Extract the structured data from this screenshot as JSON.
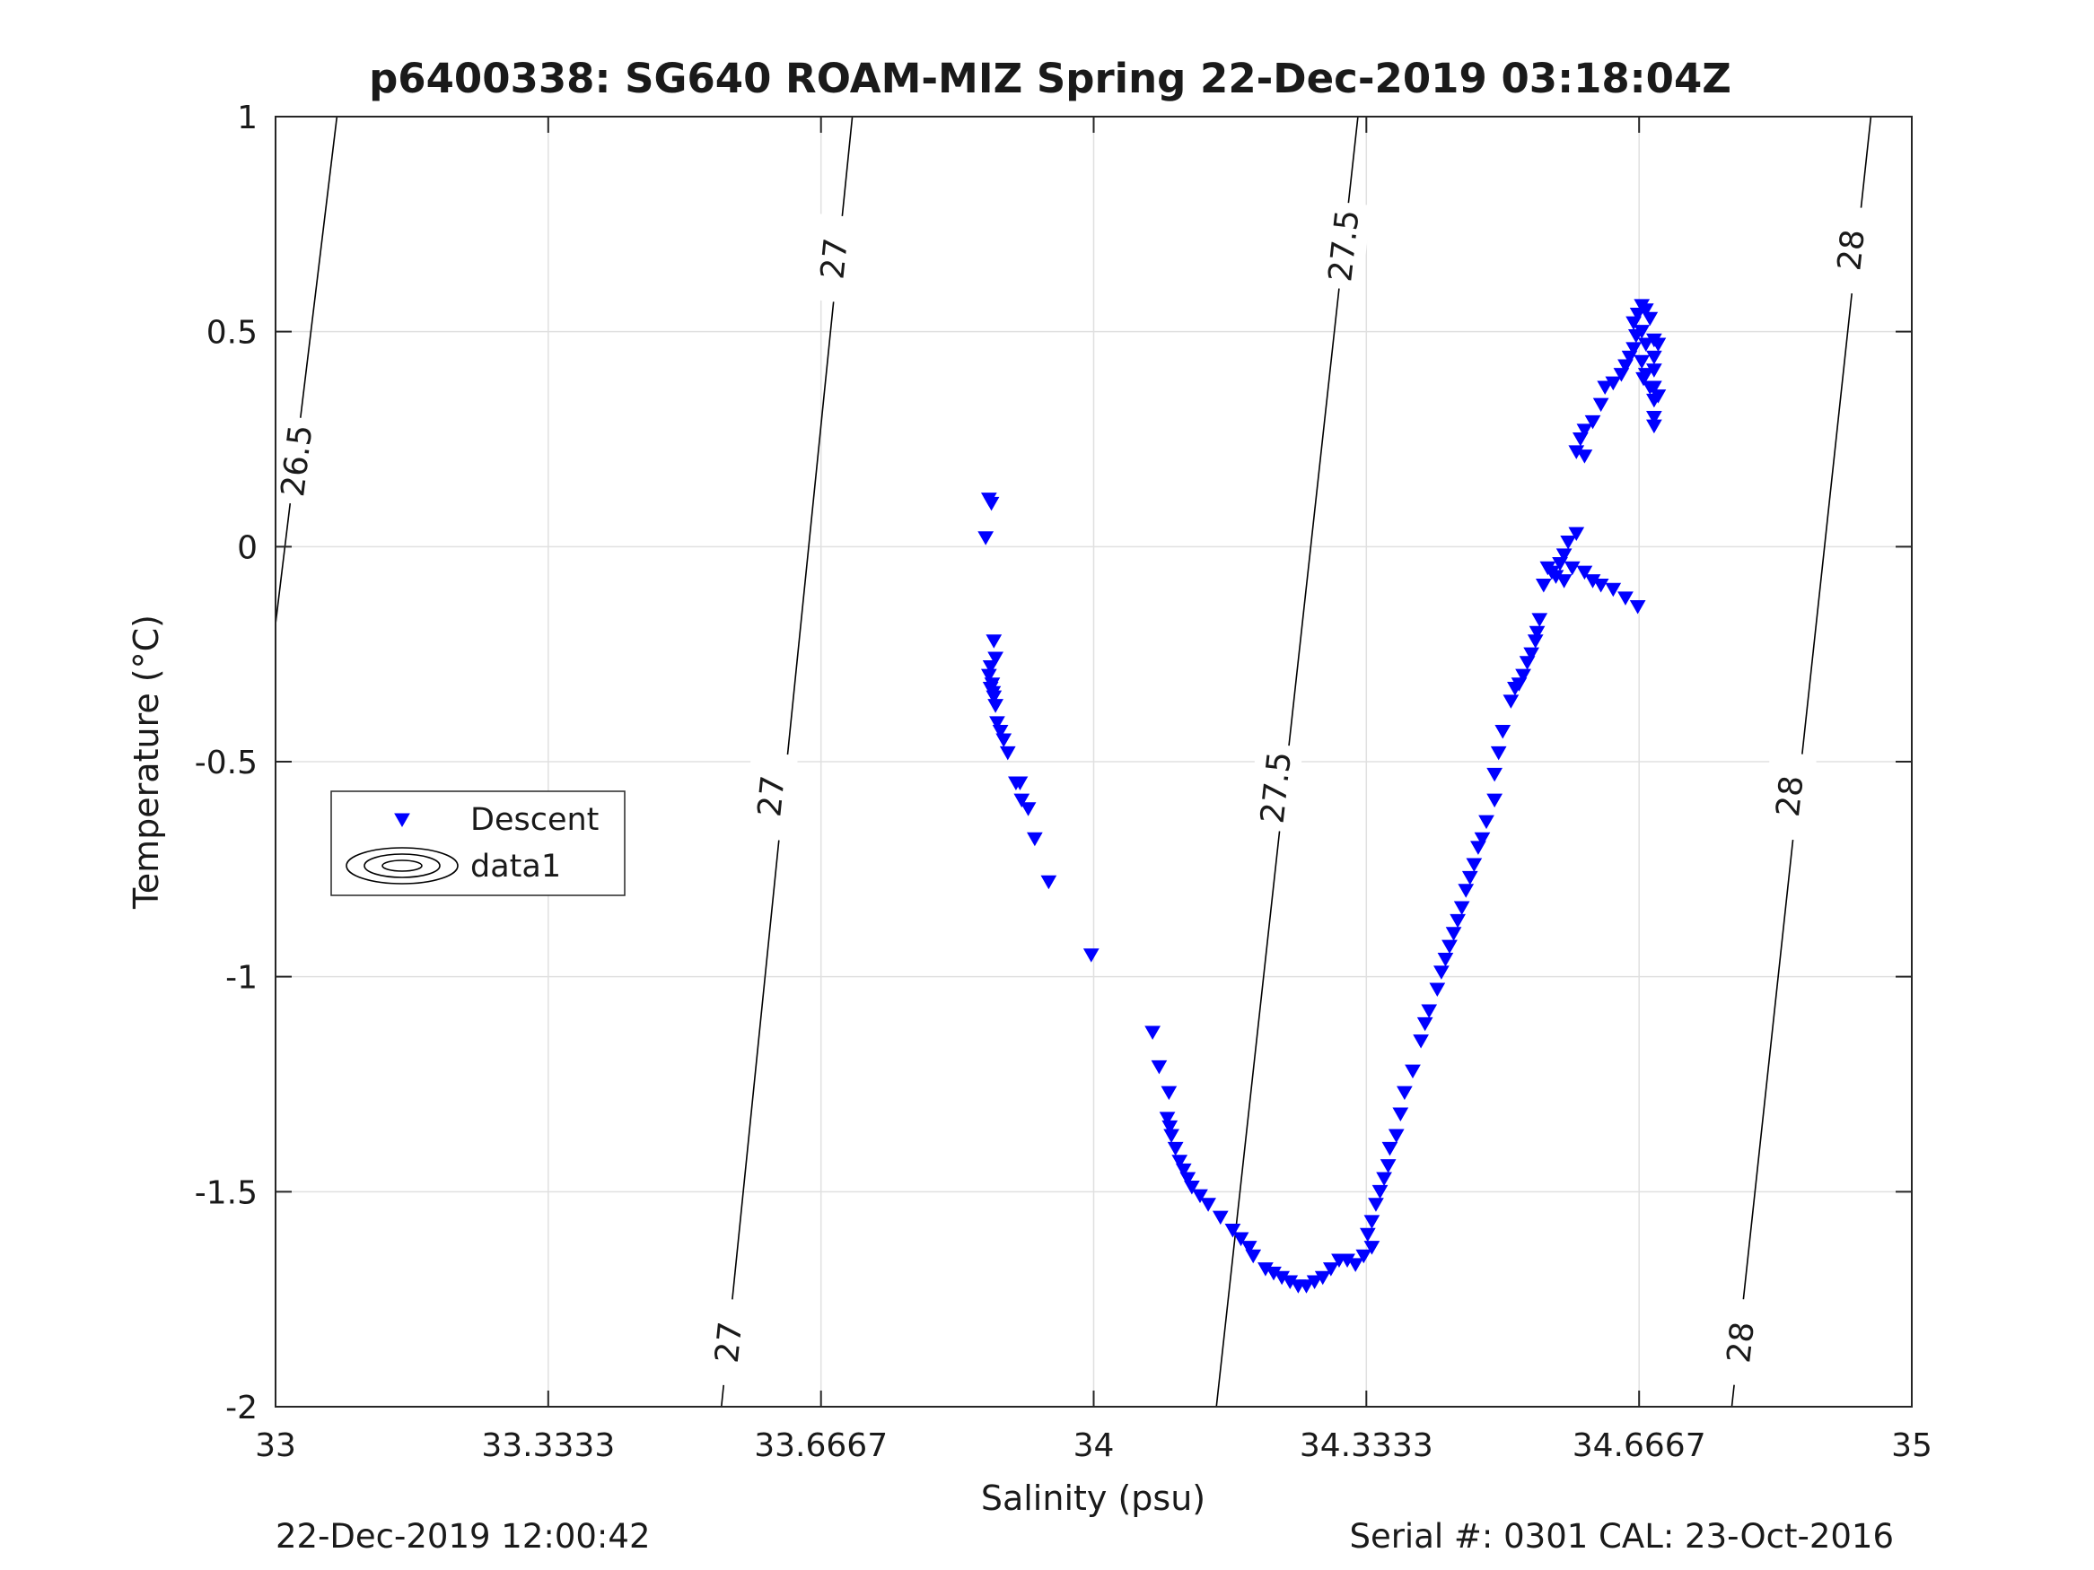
{
  "chart_data": {
    "type": "scatter",
    "title": "p6400338: SG640 ROAM-MIZ Spring 22-Dec-2019 03:18:04Z",
    "xlabel": "Salinity (psu)",
    "ylabel": "Temperature (°C)",
    "xlim": [
      33,
      35
    ],
    "ylim": [
      -2,
      1
    ],
    "xticks": [
      33,
      33.3333,
      33.6667,
      34,
      34.3333,
      34.6667,
      35
    ],
    "xtick_labels": [
      "33",
      "33.3333",
      "33.6667",
      "34",
      "34.3333",
      "34.6667",
      "35"
    ],
    "yticks": [
      -2,
      -1.5,
      -1,
      -0.5,
      0,
      0.5,
      1
    ],
    "ytick_labels": [
      "-2",
      "-1.5",
      "-1",
      "-0.5",
      "0",
      "0.5",
      "1"
    ],
    "grid": true,
    "legend": {
      "position": "left-middle",
      "entries": [
        "Descent",
        "data1"
      ]
    },
    "contours": [
      {
        "level": "26.5",
        "points": [
          [
            33,
            -0.18
          ],
          [
            33.075,
            1
          ]
        ],
        "labels": [
          [
            33.025,
            0.2
          ]
        ]
      },
      {
        "level": "27",
        "points": [
          [
            33.545,
            -2
          ],
          [
            33.705,
            1
          ]
        ],
        "labels": [
          [
            33.553,
            -1.85
          ],
          [
            33.605,
            -0.58
          ],
          [
            33.682,
            0.67
          ]
        ]
      },
      {
        "level": "27.5",
        "points": [
          [
            34.15,
            -2
          ],
          [
            34.323,
            1
          ]
        ],
        "labels": [
          [
            34.222,
            -0.56
          ],
          [
            34.305,
            0.7
          ]
        ]
      },
      {
        "level": "28",
        "points": [
          [
            34.78,
            -2
          ],
          [
            34.95,
            1
          ]
        ],
        "labels": [
          [
            34.79,
            -1.85
          ],
          [
            34.85,
            -0.58
          ],
          [
            34.925,
            0.69
          ]
        ]
      }
    ],
    "series": [
      {
        "name": "Descent",
        "color": "#0000ff",
        "marker": "triangle-down",
        "points": [
          [
            33.872,
            0.11
          ],
          [
            33.875,
            0.1
          ],
          [
            33.868,
            0.02
          ],
          [
            33.878,
            -0.22
          ],
          [
            33.88,
            -0.26
          ],
          [
            33.874,
            -0.28
          ],
          [
            33.872,
            -0.3
          ],
          [
            33.876,
            -0.32
          ],
          [
            33.874,
            -0.33
          ],
          [
            33.878,
            -0.35
          ],
          [
            33.88,
            -0.37
          ],
          [
            33.877,
            -0.34
          ],
          [
            33.882,
            -0.41
          ],
          [
            33.886,
            -0.43
          ],
          [
            33.89,
            -0.45
          ],
          [
            33.895,
            -0.48
          ],
          [
            33.905,
            -0.55
          ],
          [
            33.91,
            -0.55
          ],
          [
            33.912,
            -0.59
          ],
          [
            33.92,
            -0.61
          ],
          [
            33.928,
            -0.68
          ],
          [
            33.945,
            -0.78
          ],
          [
            33.997,
            -0.95
          ],
          [
            34.072,
            -1.13
          ],
          [
            34.08,
            -1.21
          ],
          [
            34.092,
            -1.27
          ],
          [
            34.09,
            -1.33
          ],
          [
            34.093,
            -1.35
          ],
          [
            34.095,
            -1.37
          ],
          [
            34.1,
            -1.4
          ],
          [
            34.105,
            -1.43
          ],
          [
            34.11,
            -1.45
          ],
          [
            34.115,
            -1.47
          ],
          [
            34.12,
            -1.49
          ],
          [
            34.13,
            -1.51
          ],
          [
            34.14,
            -1.53
          ],
          [
            34.155,
            -1.56
          ],
          [
            34.17,
            -1.59
          ],
          [
            34.18,
            -1.61
          ],
          [
            34.19,
            -1.63
          ],
          [
            34.195,
            -1.65
          ],
          [
            34.21,
            -1.68
          ],
          [
            34.22,
            -1.69
          ],
          [
            34.23,
            -1.7
          ],
          [
            34.24,
            -1.71
          ],
          [
            34.25,
            -1.72
          ],
          [
            34.26,
            -1.72
          ],
          [
            34.27,
            -1.71
          ],
          [
            34.28,
            -1.7
          ],
          [
            34.29,
            -1.68
          ],
          [
            34.3,
            -1.66
          ],
          [
            34.31,
            -1.66
          ],
          [
            34.32,
            -1.67
          ],
          [
            34.33,
            -1.65
          ],
          [
            34.34,
            -1.63
          ],
          [
            34.335,
            -1.6
          ],
          [
            34.34,
            -1.57
          ],
          [
            34.345,
            -1.53
          ],
          [
            34.35,
            -1.5
          ],
          [
            34.355,
            -1.47
          ],
          [
            34.36,
            -1.44
          ],
          [
            34.362,
            -1.4
          ],
          [
            34.37,
            -1.37
          ],
          [
            34.375,
            -1.32
          ],
          [
            34.38,
            -1.27
          ],
          [
            34.39,
            -1.22
          ],
          [
            34.4,
            -1.15
          ],
          [
            34.405,
            -1.11
          ],
          [
            34.41,
            -1.08
          ],
          [
            34.42,
            -1.03
          ],
          [
            34.425,
            -0.99
          ],
          [
            34.43,
            -0.96
          ],
          [
            34.435,
            -0.93
          ],
          [
            34.44,
            -0.9
          ],
          [
            34.445,
            -0.87
          ],
          [
            34.45,
            -0.84
          ],
          [
            34.455,
            -0.8
          ],
          [
            34.46,
            -0.77
          ],
          [
            34.465,
            -0.74
          ],
          [
            34.47,
            -0.7
          ],
          [
            34.475,
            -0.68
          ],
          [
            34.48,
            -0.64
          ],
          [
            34.49,
            -0.59
          ],
          [
            34.49,
            -0.53
          ],
          [
            34.495,
            -0.48
          ],
          [
            34.5,
            -0.43
          ],
          [
            34.51,
            -0.36
          ],
          [
            34.515,
            -0.33
          ],
          [
            34.52,
            -0.32
          ],
          [
            34.525,
            -0.3
          ],
          [
            34.53,
            -0.27
          ],
          [
            34.535,
            -0.25
          ],
          [
            34.54,
            -0.22
          ],
          [
            34.542,
            -0.2
          ],
          [
            34.545,
            -0.17
          ],
          [
            34.55,
            -0.09
          ],
          [
            34.555,
            -0.05
          ],
          [
            34.56,
            -0.06
          ],
          [
            34.565,
            -0.07
          ],
          [
            34.57,
            -0.04
          ],
          [
            34.575,
            -0.02
          ],
          [
            34.58,
            0.01
          ],
          [
            34.575,
            -0.08
          ],
          [
            34.585,
            -0.05
          ],
          [
            34.59,
            0.03
          ],
          [
            34.6,
            -0.06
          ],
          [
            34.61,
            -0.08
          ],
          [
            34.62,
            -0.09
          ],
          [
            34.635,
            -0.1
          ],
          [
            34.65,
            -0.12
          ],
          [
            34.665,
            -0.14
          ],
          [
            34.59,
            0.22
          ],
          [
            34.6,
            0.21
          ],
          [
            34.595,
            0.25
          ],
          [
            34.6,
            0.27
          ],
          [
            34.61,
            0.29
          ],
          [
            34.62,
            0.33
          ],
          [
            34.625,
            0.37
          ],
          [
            34.635,
            0.38
          ],
          [
            34.645,
            0.4
          ],
          [
            34.65,
            0.42
          ],
          [
            34.655,
            0.44
          ],
          [
            34.66,
            0.46
          ],
          [
            34.663,
            0.49
          ],
          [
            34.66,
            0.52
          ],
          [
            34.665,
            0.54
          ],
          [
            34.67,
            0.56
          ],
          [
            34.675,
            0.55
          ],
          [
            34.68,
            0.53
          ],
          [
            34.67,
            0.5
          ],
          [
            34.675,
            0.47
          ],
          [
            34.67,
            0.43
          ],
          [
            34.675,
            0.4
          ],
          [
            34.68,
            0.37
          ],
          [
            34.672,
            0.39
          ],
          [
            34.685,
            0.48
          ],
          [
            34.685,
            0.44
          ],
          [
            34.685,
            0.41
          ],
          [
            34.685,
            0.37
          ],
          [
            34.685,
            0.34
          ],
          [
            34.685,
            0.3
          ],
          [
            34.685,
            0.28
          ],
          [
            34.69,
            0.35
          ],
          [
            34.69,
            0.47
          ]
        ]
      }
    ],
    "footer_left": "22-Dec-2019 12:00:42",
    "footer_right": "Serial #: 0301  CAL: 23-Oct-2016"
  }
}
